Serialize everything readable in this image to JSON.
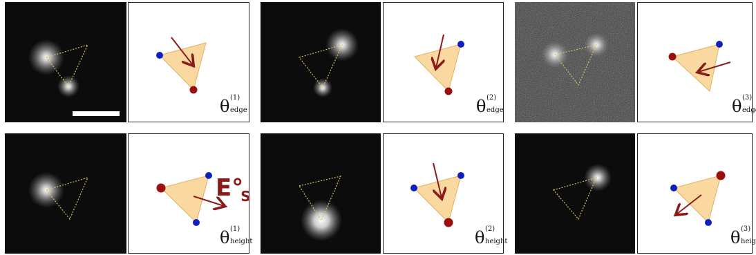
{
  "figure": {
    "rows": [
      {
        "id": "edge",
        "cells": [
          {
            "label_symbol": "θ",
            "label_sup": "(1)",
            "label_sub": "edge"
          },
          {
            "label_symbol": "θ",
            "label_sup": "(2)",
            "label_sub": "edge"
          },
          {
            "label_symbol": "θ",
            "label_sup": "(3)",
            "label_sub": "edge"
          }
        ]
      },
      {
        "id": "height",
        "cells": [
          {
            "label_symbol": "θ",
            "label_sup": "(1)",
            "label_sub": "height"
          },
          {
            "label_symbol": "θ",
            "label_sup": "(2)",
            "label_sub": "height"
          },
          {
            "label_symbol": "θ",
            "label_sup": "(3)",
            "label_sub": "height"
          }
        ]
      }
    ],
    "field_label": {
      "main": "E",
      "degree": "°",
      "sub": "S"
    },
    "colors": {
      "triangle_fill": "#fad9a0",
      "triangle_stroke": "#e0b060",
      "blue_dot": "#1020c0",
      "red_dot": "#9a0e0e",
      "arrow": "#8b1a1a",
      "dotted_outline": "#d8c060"
    }
  }
}
